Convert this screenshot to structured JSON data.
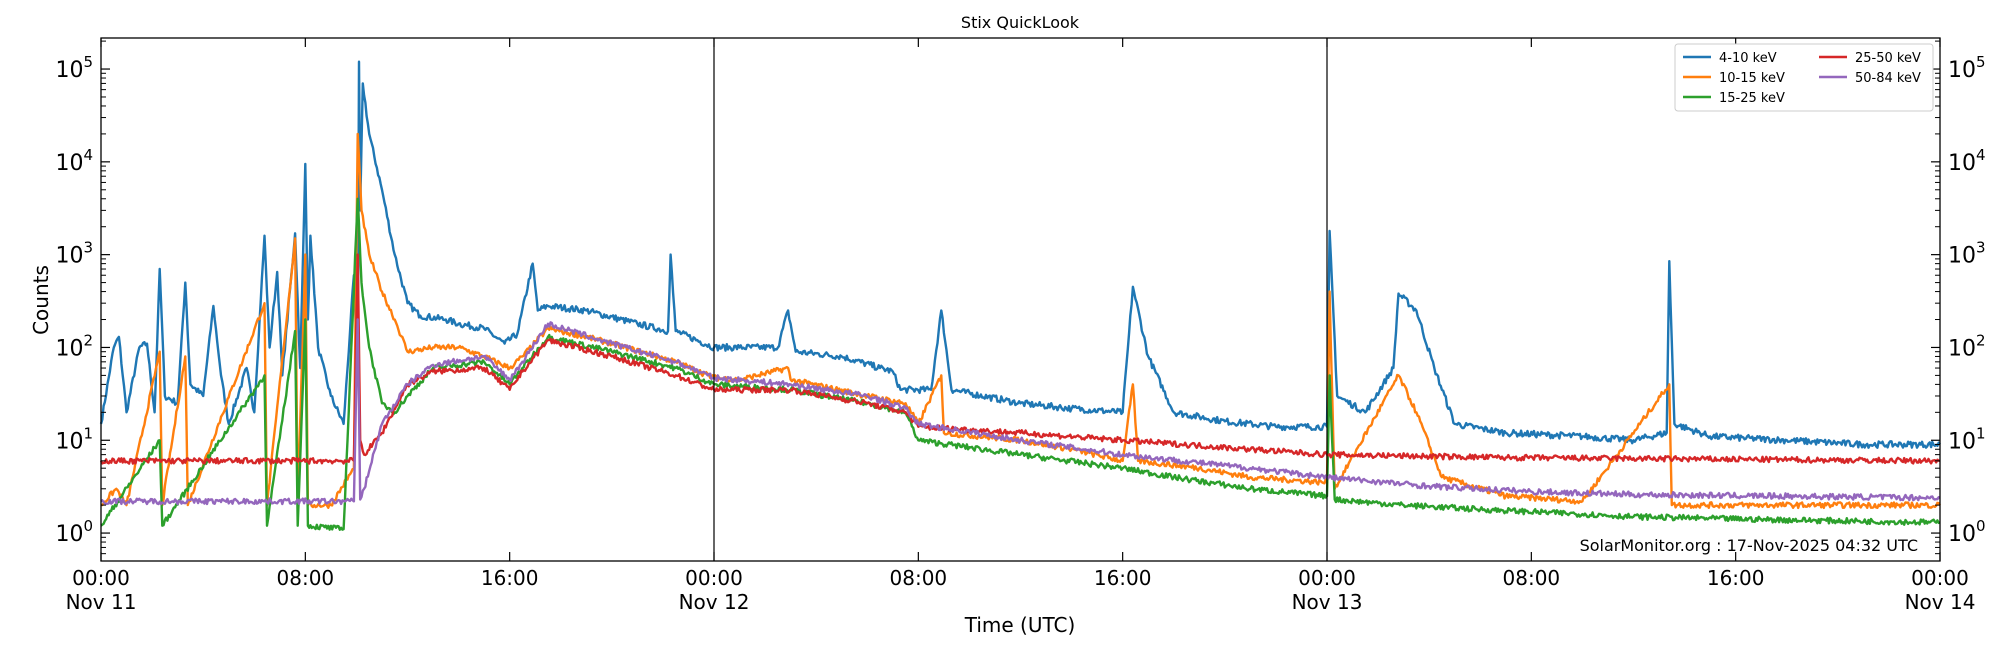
{
  "chart_data": {
    "type": "line",
    "title": "Stix QuickLook",
    "xlabel": "Time (UTC)",
    "ylabel": "Counts",
    "yscale": "log",
    "ylim": [
      0.5,
      216000
    ],
    "xlim_hours": [
      0,
      72
    ],
    "x_unit": "hours since Nov 11 00:00 UTC",
    "grid": false,
    "legend_position": "top-right",
    "y_ticks": [
      {
        "value": 1,
        "label": "10^0"
      },
      {
        "value": 10,
        "label": "10^1"
      },
      {
        "value": 100,
        "label": "10^2"
      },
      {
        "value": 1000,
        "label": "10^3"
      },
      {
        "value": 10000,
        "label": "10^4"
      },
      {
        "value": 100000,
        "label": "10^5"
      }
    ],
    "x_ticks": [
      {
        "hour": 0,
        "time": "00:00",
        "date": "Nov 11"
      },
      {
        "hour": 8,
        "time": "08:00",
        "date": ""
      },
      {
        "hour": 16,
        "time": "16:00",
        "date": ""
      },
      {
        "hour": 24,
        "time": "00:00",
        "date": "Nov 12"
      },
      {
        "hour": 32,
        "time": "08:00",
        "date": ""
      },
      {
        "hour": 40,
        "time": "16:00",
        "date": ""
      },
      {
        "hour": 48,
        "time": "00:00",
        "date": "Nov 13"
      },
      {
        "hour": 56,
        "time": "08:00",
        "date": ""
      },
      {
        "hour": 64,
        "time": "16:00",
        "date": ""
      },
      {
        "hour": 72,
        "time": "00:00",
        "date": "Nov 14"
      }
    ],
    "day_boundaries_hours": [
      24,
      48
    ],
    "annotation": "SolarMonitor.org : 17-Nov-2025 04:32 UTC",
    "series": [
      {
        "name": "4-10 keV",
        "color": "#1f77b4",
        "points": [
          [
            0,
            15
          ],
          [
            0.5,
            100
          ],
          [
            0.7,
            130
          ],
          [
            1,
            20
          ],
          [
            1.5,
            100
          ],
          [
            1.8,
            110
          ],
          [
            2.1,
            20
          ],
          [
            2.3,
            700
          ],
          [
            2.5,
            30
          ],
          [
            3,
            25
          ],
          [
            3.3,
            500
          ],
          [
            3.5,
            40
          ],
          [
            4,
            30
          ],
          [
            4.4,
            280
          ],
          [
            4.7,
            50
          ],
          [
            5,
            15
          ],
          [
            5.7,
            60
          ],
          [
            6,
            20
          ],
          [
            6.4,
            1600
          ],
          [
            6.6,
            100
          ],
          [
            6.9,
            650
          ],
          [
            7.1,
            50
          ],
          [
            7.6,
            1700
          ],
          [
            7.8,
            60
          ],
          [
            8.0,
            9500
          ],
          [
            8.1,
            200
          ],
          [
            8.2,
            1600
          ],
          [
            8.5,
            100
          ],
          [
            9,
            30
          ],
          [
            9.5,
            15
          ],
          [
            9.9,
            600
          ],
          [
            10.05,
            50
          ],
          [
            10.1,
            120000
          ],
          [
            10.15,
            3000
          ],
          [
            10.25,
            70000
          ],
          [
            10.5,
            20000
          ],
          [
            11,
            5000
          ],
          [
            11.5,
            1000
          ],
          [
            12,
            300
          ],
          [
            12.5,
            220
          ],
          [
            13.5,
            200
          ],
          [
            14,
            180
          ],
          [
            15,
            160
          ],
          [
            15.8,
            110
          ],
          [
            16.3,
            140
          ],
          [
            16.9,
            800
          ],
          [
            17.1,
            250
          ],
          [
            17.5,
            280
          ],
          [
            19,
            250
          ],
          [
            21,
            180
          ],
          [
            22.2,
            150
          ],
          [
            22.3,
            1000
          ],
          [
            22.5,
            150
          ],
          [
            24,
            100
          ],
          [
            25,
            100
          ],
          [
            26.5,
            100
          ],
          [
            26.9,
            250
          ],
          [
            27.2,
            90
          ],
          [
            29,
            80
          ],
          [
            30.5,
            60
          ],
          [
            31,
            55
          ],
          [
            31.3,
            35
          ],
          [
            32.5,
            35
          ],
          [
            32.9,
            250
          ],
          [
            33.3,
            35
          ],
          [
            36,
            25
          ],
          [
            38,
            22
          ],
          [
            40,
            20
          ],
          [
            40.4,
            450
          ],
          [
            41,
            80
          ],
          [
            42,
            20
          ],
          [
            44,
            16
          ],
          [
            46,
            14
          ],
          [
            48,
            14
          ],
          [
            48.1,
            1800
          ],
          [
            48.4,
            30
          ],
          [
            49.5,
            20
          ],
          [
            50.6,
            60
          ],
          [
            50.8,
            380
          ],
          [
            51.5,
            250
          ],
          [
            52.2,
            60
          ],
          [
            53,
            15
          ],
          [
            55,
            12
          ],
          [
            58,
            11
          ],
          [
            60,
            10
          ],
          [
            61.3,
            12
          ],
          [
            61.4,
            850
          ],
          [
            61.6,
            15
          ],
          [
            63,
            11
          ],
          [
            66,
            10
          ],
          [
            69,
            9
          ],
          [
            72,
            9
          ]
        ]
      },
      {
        "name": "10-15 keV",
        "color": "#ff7f0e",
        "points": [
          [
            0,
            2
          ],
          [
            0.6,
            3
          ],
          [
            1,
            2
          ],
          [
            2.3,
            90
          ],
          [
            2.4,
            2
          ],
          [
            3.3,
            80
          ],
          [
            3.4,
            2
          ],
          [
            6.4,
            300
          ],
          [
            6.5,
            2
          ],
          [
            7.6,
            1500
          ],
          [
            7.7,
            2
          ],
          [
            8.0,
            1000
          ],
          [
            8.1,
            2
          ],
          [
            9,
            2
          ],
          [
            9.9,
            5
          ],
          [
            10.05,
            20000
          ],
          [
            10.2,
            3000
          ],
          [
            10.5,
            1000
          ],
          [
            11,
            400
          ],
          [
            11.5,
            200
          ],
          [
            12,
            90
          ],
          [
            13,
            100
          ],
          [
            14,
            100
          ],
          [
            15,
            80
          ],
          [
            16,
            60
          ],
          [
            16.5,
            80
          ],
          [
            17.5,
            160
          ],
          [
            19,
            130
          ],
          [
            20,
            110
          ],
          [
            22.5,
            70
          ],
          [
            24,
            47
          ],
          [
            25,
            45
          ],
          [
            26.9,
            60
          ],
          [
            27,
            45
          ],
          [
            30,
            30
          ],
          [
            31.5,
            25
          ],
          [
            32,
            15
          ],
          [
            32.9,
            50
          ],
          [
            33,
            12
          ],
          [
            36,
            10
          ],
          [
            38,
            8
          ],
          [
            40,
            6
          ],
          [
            40.4,
            40
          ],
          [
            40.6,
            6
          ],
          [
            43,
            5
          ],
          [
            45,
            4
          ],
          [
            48,
            3.5
          ],
          [
            48.1,
            400
          ],
          [
            48.3,
            3
          ],
          [
            50.8,
            50
          ],
          [
            51.5,
            20
          ],
          [
            52.5,
            4
          ],
          [
            55,
            2.5
          ],
          [
            58,
            2.2
          ],
          [
            61.4,
            40
          ],
          [
            61.5,
            2
          ],
          [
            65,
            2
          ],
          [
            72,
            2
          ]
        ]
      },
      {
        "name": "15-25 keV",
        "color": "#2ca02c",
        "points": [
          [
            0,
            1.2
          ],
          [
            2.3,
            10
          ],
          [
            2.4,
            1.2
          ],
          [
            6.4,
            50
          ],
          [
            6.5,
            1.2
          ],
          [
            7.6,
            150
          ],
          [
            7.7,
            1.2
          ],
          [
            8.0,
            200
          ],
          [
            8.1,
            1.2
          ],
          [
            9.5,
            1.1
          ],
          [
            10.05,
            4000
          ],
          [
            10.2,
            500
          ],
          [
            10.5,
            100
          ],
          [
            11,
            25
          ],
          [
            11.5,
            20
          ],
          [
            12,
            30
          ],
          [
            13,
            60
          ],
          [
            15,
            70
          ],
          [
            16,
            40
          ],
          [
            16.5,
            60
          ],
          [
            17.5,
            130
          ],
          [
            20,
            90
          ],
          [
            22.5,
            60
          ],
          [
            24,
            40
          ],
          [
            27,
            35
          ],
          [
            30,
            25
          ],
          [
            31.5,
            20
          ],
          [
            32,
            10
          ],
          [
            36,
            7
          ],
          [
            40,
            5
          ],
          [
            42,
            4
          ],
          [
            45,
            3
          ],
          [
            48,
            2.5
          ],
          [
            48.1,
            50
          ],
          [
            48.3,
            2.3
          ],
          [
            51,
            2
          ],
          [
            54,
            1.8
          ],
          [
            58,
            1.6
          ],
          [
            60,
            1.5
          ],
          [
            65,
            1.4
          ],
          [
            72,
            1.3
          ]
        ]
      },
      {
        "name": "25-50 keV",
        "color": "#d62728",
        "points": [
          [
            0,
            6
          ],
          [
            9.9,
            6
          ],
          [
            10.05,
            1000
          ],
          [
            10.15,
            10
          ],
          [
            10.3,
            7
          ],
          [
            11,
            12
          ],
          [
            12,
            40
          ],
          [
            13,
            55
          ],
          [
            15,
            60
          ],
          [
            16,
            35
          ],
          [
            16.5,
            55
          ],
          [
            17.5,
            120
          ],
          [
            20,
            80
          ],
          [
            22.5,
            50
          ],
          [
            24,
            35
          ],
          [
            27,
            35
          ],
          [
            30,
            25
          ],
          [
            31.5,
            20
          ],
          [
            32,
            14
          ],
          [
            36,
            12
          ],
          [
            40,
            10
          ],
          [
            45,
            8
          ],
          [
            48,
            7
          ],
          [
            55,
            6.5
          ],
          [
            72,
            6
          ]
        ]
      },
      {
        "name": "50-84 keV",
        "color": "#9467bd",
        "points": [
          [
            0,
            2.2
          ],
          [
            9.9,
            2.2
          ],
          [
            10.05,
            200
          ],
          [
            10.15,
            2.3
          ],
          [
            10.3,
            3
          ],
          [
            11,
            15
          ],
          [
            12,
            40
          ],
          [
            13,
            65
          ],
          [
            15,
            80
          ],
          [
            16,
            45
          ],
          [
            16.5,
            70
          ],
          [
            17.5,
            180
          ],
          [
            20,
            110
          ],
          [
            22.5,
            70
          ],
          [
            24,
            47
          ],
          [
            27,
            40
          ],
          [
            30,
            30
          ],
          [
            31.5,
            22
          ],
          [
            32,
            15
          ],
          [
            36,
            10
          ],
          [
            40,
            7
          ],
          [
            45,
            5
          ],
          [
            48,
            4
          ],
          [
            52,
            3.2
          ],
          [
            56,
            2.8
          ],
          [
            60,
            2.6
          ],
          [
            72,
            2.4
          ]
        ]
      }
    ]
  }
}
